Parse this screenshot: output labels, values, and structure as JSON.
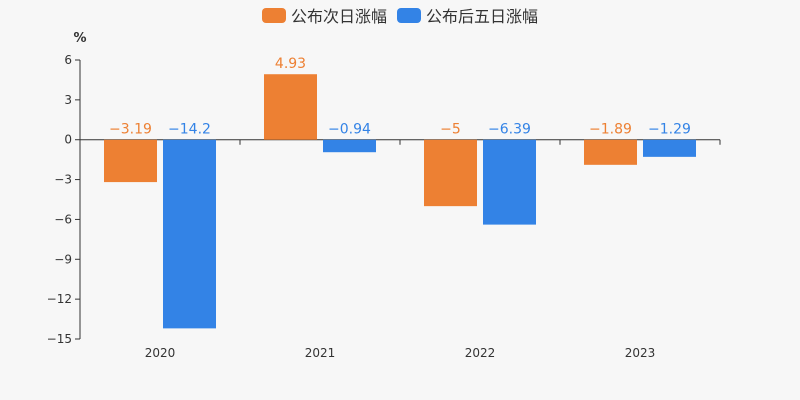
{
  "chart_data": {
    "type": "bar",
    "unit": "%",
    "categories": [
      "2020",
      "2021",
      "2022",
      "2023"
    ],
    "series": [
      {
        "name": "公布次日涨幅",
        "color": "#ed8033",
        "values": [
          -3.19,
          4.93,
          -5,
          -1.89
        ],
        "labels": [
          "−3.19",
          "4.93",
          "−5",
          "−1.89"
        ]
      },
      {
        "name": "公布后五日涨幅",
        "color": "#3383e6",
        "values": [
          -14.2,
          -0.94,
          -6.39,
          -1.29
        ],
        "labels": [
          "−14.2",
          "−0.94",
          "−6.39",
          "−1.29"
        ]
      }
    ],
    "y_ticks": [
      6,
      3,
      0,
      -3,
      -6,
      -9,
      -12,
      -15
    ],
    "y_tick_labels": [
      "6",
      "3",
      "0",
      "−3",
      "−6",
      "−9",
      "−12",
      "−15"
    ],
    "ylim": [
      -15,
      6
    ],
    "grid": false,
    "legend_position": "top-center"
  }
}
